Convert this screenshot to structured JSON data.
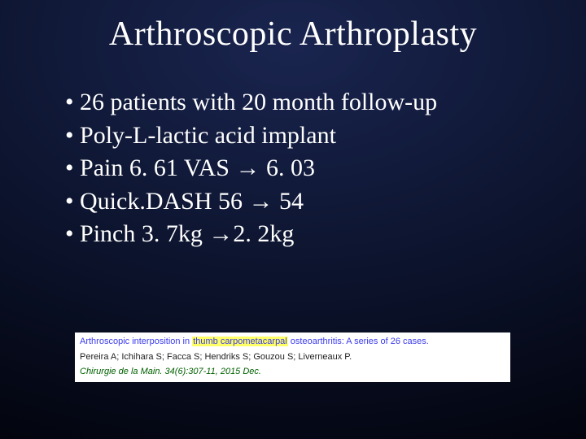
{
  "title": "Arthroscopic Arthroplasty",
  "bullets": [
    {
      "dot": "•",
      "text": "26 patients with 20 month follow-up"
    },
    {
      "dot": "•",
      "text": "Poly-L-lactic acid implant"
    },
    {
      "dot": "•",
      "pre": "Pain 6. 61 VAS ",
      "arrow": "→",
      "post": " 6. 03"
    },
    {
      "dot": "•",
      "pre": "Quick.DASH  56 ",
      "arrow": "→",
      "post": " 54"
    },
    {
      "dot": "•",
      "pre": "Pinch  3. 7kg ",
      "arrow": "→",
      "post": "2. 2kg"
    }
  ],
  "citation": {
    "title_pre": "Arthroscopic interposition in ",
    "title_hl": "thumb carpometacarpal",
    "title_post": " osteoarthritis: A series of 26 cases.",
    "authors": "Pereira A; Ichihara S; Facca S; Hendriks S; Gouzou S; Liverneaux P.",
    "journal": "Chirurgie de la Main. 34(6):307-11, 2015 Dec."
  },
  "colors": {
    "text": "#ffffff",
    "citation_link": "#3a3aee",
    "citation_highlight_bg": "#ffff66",
    "citation_journal": "#006000"
  }
}
